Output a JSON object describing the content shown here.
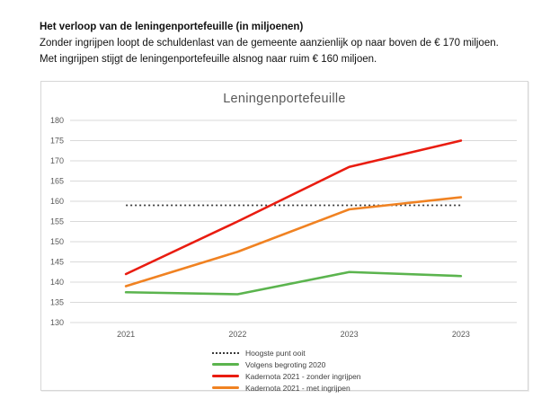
{
  "document": {
    "heading": "Het verloop van de leningenportefeuille (in miljoenen)",
    "paragraph_1": "Zonder ingrijpen loopt de schuldenlast van de gemeente aanzienlijk op naar boven de € 170 miljoen.",
    "paragraph_2": "Met ingrijpen stijgt de leningenportefeuille alsnog naar ruim € 160 miljoen."
  },
  "chart_data": {
    "type": "line",
    "title": "Leningenportefeuille",
    "categories": [
      "2021",
      "2022",
      "2023",
      "2023"
    ],
    "series": [
      {
        "name": "Hoogste punt ooit",
        "values": [
          159,
          159,
          159,
          159
        ],
        "color": "#3a3a3a",
        "style": "dotted"
      },
      {
        "name": "Volgens begroting 2020",
        "values": [
          137.5,
          137,
          142.5,
          141.5
        ],
        "color": "#5bb44e",
        "style": "solid"
      },
      {
        "name": "Kadernota 2021 - zonder ingrijpen",
        "values": [
          142,
          155,
          168.5,
          175
        ],
        "color": "#e91c10",
        "style": "solid"
      },
      {
        "name": "Kadernota 2021 - met ingrijpen",
        "values": [
          139,
          147.5,
          158,
          161
        ],
        "color": "#f08222",
        "style": "solid"
      }
    ],
    "xlabel": "",
    "ylabel": "",
    "ylim": [
      130,
      180
    ],
    "ytick_step": 5,
    "grid": true,
    "legend_position": "bottom",
    "colors": {
      "gridline": "#d9d9d9",
      "axis_label": "#595959",
      "chart_border": "#d7d7d7",
      "title": "#595959",
      "legend_text": "#404040"
    }
  }
}
